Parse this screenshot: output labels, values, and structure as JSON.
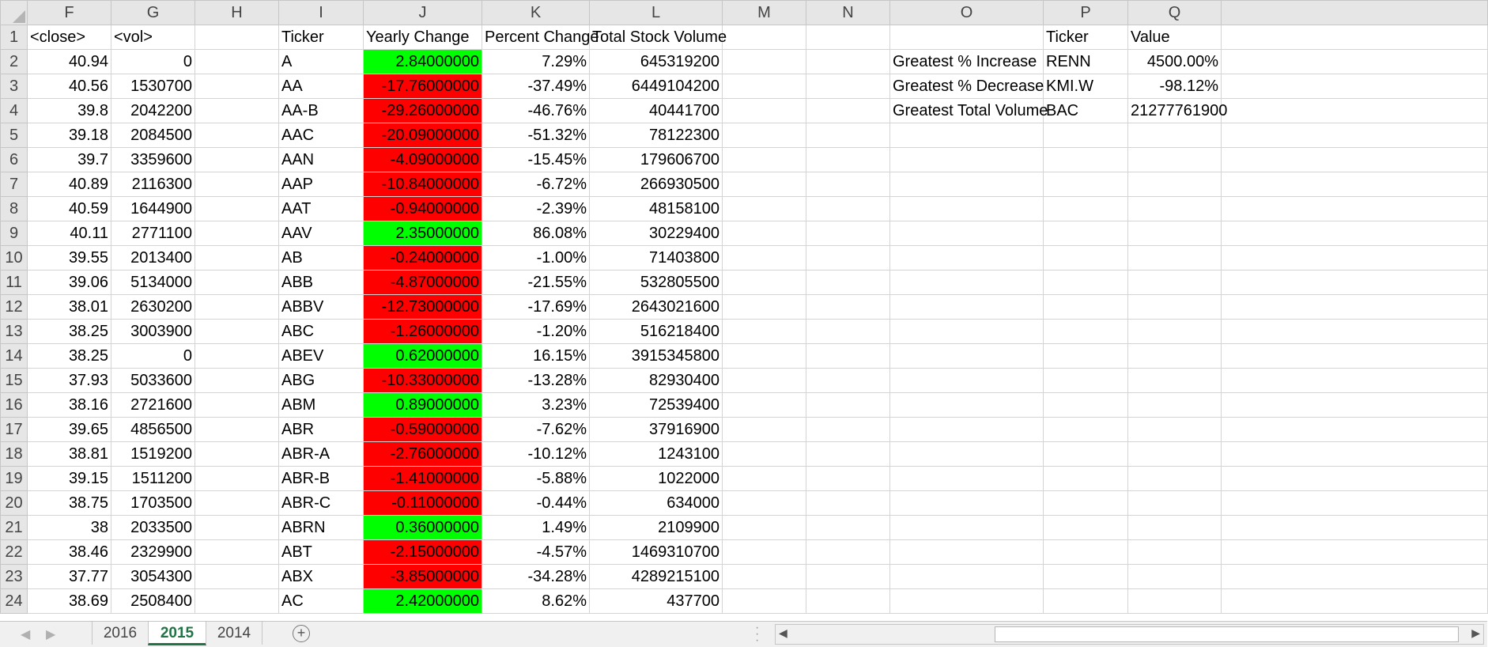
{
  "columns": [
    "F",
    "G",
    "H",
    "I",
    "J",
    "K",
    "L",
    "M",
    "N",
    "O",
    "P",
    "Q"
  ],
  "header_row": {
    "row_num": "1",
    "F": "<close>",
    "G": "<vol>",
    "I": "Ticker",
    "J": "Yearly Change",
    "K": "Percent Change",
    "L": "Total Stock Volume",
    "P": "Ticker",
    "Q": "Value"
  },
  "rows": [
    {
      "row": "2",
      "close": "40.94",
      "vol": "0",
      "ticker": "A",
      "yearly_change": "2.84000000",
      "percent": "7.29%",
      "volume": "645319200",
      "summary_label": "Greatest % Increase",
      "summary_ticker": "RENN",
      "summary_value": "4500.00%"
    },
    {
      "row": "3",
      "close": "40.56",
      "vol": "1530700",
      "ticker": "AA",
      "yearly_change": "-17.76000000",
      "percent": "-37.49%",
      "volume": "6449104200",
      "summary_label": "Greatest % Decrease",
      "summary_ticker": "KMI.W",
      "summary_value": "-98.12%"
    },
    {
      "row": "4",
      "close": "39.8",
      "vol": "2042200",
      "ticker": "AA-B",
      "yearly_change": "-29.26000000",
      "percent": "-46.76%",
      "volume": "40441700",
      "summary_label": "Greatest Total Volume",
      "summary_ticker": "BAC",
      "summary_value": "21277761900"
    },
    {
      "row": "5",
      "close": "39.18",
      "vol": "2084500",
      "ticker": "AAC",
      "yearly_change": "-20.09000000",
      "percent": "-51.32%",
      "volume": "78122300"
    },
    {
      "row": "6",
      "close": "39.7",
      "vol": "3359600",
      "ticker": "AAN",
      "yearly_change": "-4.09000000",
      "percent": "-15.45%",
      "volume": "179606700"
    },
    {
      "row": "7",
      "close": "40.89",
      "vol": "2116300",
      "ticker": "AAP",
      "yearly_change": "-10.84000000",
      "percent": "-6.72%",
      "volume": "266930500"
    },
    {
      "row": "8",
      "close": "40.59",
      "vol": "1644900",
      "ticker": "AAT",
      "yearly_change": "-0.94000000",
      "percent": "-2.39%",
      "volume": "48158100"
    },
    {
      "row": "9",
      "close": "40.11",
      "vol": "2771100",
      "ticker": "AAV",
      "yearly_change": "2.35000000",
      "percent": "86.08%",
      "volume": "30229400"
    },
    {
      "row": "10",
      "close": "39.55",
      "vol": "2013400",
      "ticker": "AB",
      "yearly_change": "-0.24000000",
      "percent": "-1.00%",
      "volume": "71403800"
    },
    {
      "row": "11",
      "close": "39.06",
      "vol": "5134000",
      "ticker": "ABB",
      "yearly_change": "-4.87000000",
      "percent": "-21.55%",
      "volume": "532805500"
    },
    {
      "row": "12",
      "close": "38.01",
      "vol": "2630200",
      "ticker": "ABBV",
      "yearly_change": "-12.73000000",
      "percent": "-17.69%",
      "volume": "2643021600"
    },
    {
      "row": "13",
      "close": "38.25",
      "vol": "3003900",
      "ticker": "ABC",
      "yearly_change": "-1.26000000",
      "percent": "-1.20%",
      "volume": "516218400"
    },
    {
      "row": "14",
      "close": "38.25",
      "vol": "0",
      "ticker": "ABEV",
      "yearly_change": "0.62000000",
      "percent": "16.15%",
      "volume": "3915345800"
    },
    {
      "row": "15",
      "close": "37.93",
      "vol": "5033600",
      "ticker": "ABG",
      "yearly_change": "-10.33000000",
      "percent": "-13.28%",
      "volume": "82930400"
    },
    {
      "row": "16",
      "close": "38.16",
      "vol": "2721600",
      "ticker": "ABM",
      "yearly_change": "0.89000000",
      "percent": "3.23%",
      "volume": "72539400"
    },
    {
      "row": "17",
      "close": "39.65",
      "vol": "4856500",
      "ticker": "ABR",
      "yearly_change": "-0.59000000",
      "percent": "-7.62%",
      "volume": "37916900"
    },
    {
      "row": "18",
      "close": "38.81",
      "vol": "1519200",
      "ticker": "ABR-A",
      "yearly_change": "-2.76000000",
      "percent": "-10.12%",
      "volume": "1243100"
    },
    {
      "row": "19",
      "close": "39.15",
      "vol": "1511200",
      "ticker": "ABR-B",
      "yearly_change": "-1.41000000",
      "percent": "-5.88%",
      "volume": "1022000"
    },
    {
      "row": "20",
      "close": "38.75",
      "vol": "1703500",
      "ticker": "ABR-C",
      "yearly_change": "-0.11000000",
      "percent": "-0.44%",
      "volume": "634000"
    },
    {
      "row": "21",
      "close": "38",
      "vol": "2033500",
      "ticker": "ABRN",
      "yearly_change": "0.36000000",
      "percent": "1.49%",
      "volume": "2109900"
    },
    {
      "row": "22",
      "close": "38.46",
      "vol": "2329900",
      "ticker": "ABT",
      "yearly_change": "-2.15000000",
      "percent": "-4.57%",
      "volume": "1469310700"
    },
    {
      "row": "23",
      "close": "37.77",
      "vol": "3054300",
      "ticker": "ABX",
      "yearly_change": "-3.85000000",
      "percent": "-34.28%",
      "volume": "4289215100"
    },
    {
      "row": "24",
      "close": "38.69",
      "vol": "2508400",
      "ticker": "AC",
      "yearly_change": "2.42000000",
      "percent": "8.62%",
      "volume": "437700"
    }
  ],
  "colors": {
    "positive_fill": "#00ff00",
    "negative_fill": "#ff0000",
    "active_tab": "#217346",
    "header_bg": "#e6e6e6",
    "gridline": "#d4d4d4"
  },
  "sheet_tabs": [
    {
      "label": "2016",
      "active": false
    },
    {
      "label": "2015",
      "active": true
    },
    {
      "label": "2014",
      "active": false
    }
  ],
  "icons": {
    "add_sheet": "+",
    "nav_prev": "◀",
    "nav_next": "▶",
    "scroll_left": "◀",
    "scroll_right": "▶"
  }
}
